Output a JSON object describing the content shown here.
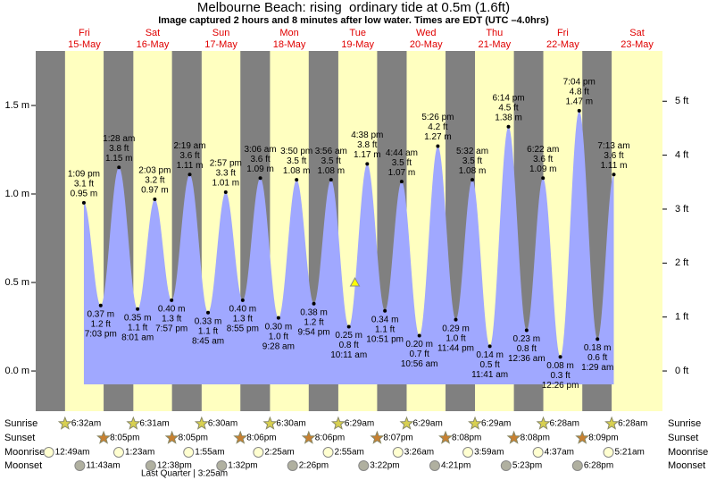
{
  "chart_data": {
    "type": "tide",
    "title": "Melbourne Beach: rising  ordinary tide at 0.5m (1.6ft)",
    "subtitle": "Image captured 2 hours and 8 minutes after low water. Times are EDT (UTC –4.0hrs)",
    "ylim": [
      -0.227,
      1.808
    ],
    "yticks": [
      {
        "value": 0,
        "label": "0.0 m"
      },
      {
        "value": 0.5,
        "label": "0.5 m"
      },
      {
        "value": 1,
        "label": "1.0 m"
      },
      {
        "value": 1.5,
        "label": "1.5 m"
      }
    ],
    "y2lim": [
      -0.745,
      5.932
    ],
    "y2ticks": [
      {
        "value": 0,
        "label": "0 ft"
      },
      {
        "value": 1,
        "label": "1 ft"
      },
      {
        "value": 2,
        "label": "2 ft"
      },
      {
        "value": 3,
        "label": "3 ft"
      },
      {
        "value": 4,
        "label": "4 ft"
      },
      {
        "value": 5,
        "label": "5 ft"
      }
    ],
    "marker": {
      "value": 0.5,
      "low_time": "10:11 am",
      "hours_after_low": 2,
      "minutes_after_low": 8
    },
    "row_labels": [
      "Sunrise",
      "Sunset",
      "Moonrise",
      "Moonset"
    ],
    "moon_phase": "Last Quarter | 3:25am",
    "days": [
      {
        "weekday": "Fri",
        "date": "15-May",
        "sunrise": "6:32am",
        "sunset": "8:05pm",
        "moonrise": "12:49am",
        "moonset": "11:43am",
        "tides": [
          {
            "time": "1:09 pm",
            "m": 0.95,
            "m_label": "0.95 m",
            "ft_label": "3.1 ft"
          },
          {
            "time": "7:03 pm",
            "m": 0.37,
            "m_label": "0.37 m",
            "ft_label": "1.2 ft"
          }
        ]
      },
      {
        "weekday": "Sat",
        "date": "16-May",
        "sunrise": "6:31am",
        "sunset": "8:05pm",
        "moonrise": "1:23am",
        "moonset": "12:38pm",
        "tides": [
          {
            "time": "1:28 am",
            "m": 1.15,
            "m_label": "1.15 m",
            "ft_label": "3.8 ft"
          },
          {
            "time": "8:01 am",
            "m": 0.35,
            "m_label": "0.35 m",
            "ft_label": "1.1 ft"
          },
          {
            "time": "2:03 pm",
            "m": 0.97,
            "m_label": "0.97 m",
            "ft_label": "3.2 ft"
          },
          {
            "time": "7:57 pm",
            "m": 0.4,
            "m_label": "0.40 m",
            "ft_label": "1.3 ft"
          }
        ]
      },
      {
        "weekday": "Sun",
        "date": "17-May",
        "sunrise": "6:30am",
        "sunset": "8:06pm",
        "moonrise": "1:55am",
        "moonset": "1:32pm",
        "tides": [
          {
            "time": "2:19 am",
            "m": 1.11,
            "m_label": "1.11 m",
            "ft_label": "3.6 ft"
          },
          {
            "time": "8:45 am",
            "m": 0.33,
            "m_label": "0.33 m",
            "ft_label": "1.1 ft"
          },
          {
            "time": "2:57 pm",
            "m": 1.01,
            "m_label": "1.01 m",
            "ft_label": "3.3 ft"
          },
          {
            "time": "8:55 pm",
            "m": 0.4,
            "m_label": "0.40 m",
            "ft_label": "1.3 ft"
          }
        ]
      },
      {
        "weekday": "Mon",
        "date": "18-May",
        "sunrise": "6:30am",
        "sunset": "8:06pm",
        "moonrise": "2:25am",
        "moonset": "2:26pm",
        "tides": [
          {
            "time": "3:06 am",
            "m": 1.09,
            "m_label": "1.09 m",
            "ft_label": "3.6 ft"
          },
          {
            "time": "9:28 am",
            "m": 0.3,
            "m_label": "0.30 m",
            "ft_label": "1.0 ft"
          },
          {
            "time": "3:50 pm",
            "m": 1.08,
            "m_label": "1.08 m",
            "ft_label": "3.5 ft"
          },
          {
            "time": "9:54 pm",
            "m": 0.38,
            "m_label": "0.38 m",
            "ft_label": "1.2 ft"
          }
        ]
      },
      {
        "weekday": "Tue",
        "date": "19-May",
        "sunrise": "6:29am",
        "sunset": "8:07pm",
        "moonrise": "2:55am",
        "moonset": "3:22pm",
        "tides": [
          {
            "time": "3:56 am",
            "m": 1.08,
            "m_label": "1.08 m",
            "ft_label": "3.5 ft"
          },
          {
            "time": "10:11 am",
            "m": 0.25,
            "m_label": "0.25 m",
            "ft_label": "0.8 ft"
          },
          {
            "time": "4:38 pm",
            "m": 1.17,
            "m_label": "1.17 m",
            "ft_label": "3.8 ft"
          },
          {
            "time": "10:51 pm",
            "m": 0.34,
            "m_label": "0.34 m",
            "ft_label": "1.1 ft"
          }
        ]
      },
      {
        "weekday": "Wed",
        "date": "20-May",
        "sunrise": "6:29am",
        "sunset": "8:08pm",
        "moonrise": "3:26am",
        "moonset": "4:21pm",
        "tides": [
          {
            "time": "4:44 am",
            "m": 1.07,
            "m_label": "1.07 m",
            "ft_label": "3.5 ft"
          },
          {
            "time": "10:56 am",
            "m": 0.2,
            "m_label": "0.20 m",
            "ft_label": "0.7 ft"
          },
          {
            "time": "5:26 pm",
            "m": 1.27,
            "m_label": "1.27 m",
            "ft_label": "4.2 ft"
          },
          {
            "time": "11:44 pm",
            "m": 0.29,
            "m_label": "0.29 m",
            "ft_label": "1.0 ft"
          }
        ]
      },
      {
        "weekday": "Thu",
        "date": "21-May",
        "sunrise": "6:29am",
        "sunset": "8:08pm",
        "moonrise": "3:59am",
        "moonset": "5:23pm",
        "tides": [
          {
            "time": "5:32 am",
            "m": 1.08,
            "m_label": "1.08 m",
            "ft_label": "3.5 ft"
          },
          {
            "time": "11:41 am",
            "m": 0.14,
            "m_label": "0.14 m",
            "ft_label": "0.5 ft"
          },
          {
            "time": "6:14 pm",
            "m": 1.38,
            "m_label": "1.38 m",
            "ft_label": "4.5 ft"
          }
        ]
      },
      {
        "weekday": "Fri",
        "date": "22-May",
        "sunrise": "6:28am",
        "sunset": "8:09pm",
        "moonrise": "4:37am",
        "moonset": "6:28pm",
        "tides": [
          {
            "time": "12:36 am",
            "m": 0.23,
            "m_label": "0.23 m",
            "ft_label": "0.8 ft"
          },
          {
            "time": "6:22 am",
            "m": 1.09,
            "m_label": "1.09 m",
            "ft_label": "3.6 ft"
          },
          {
            "time": "12:26 pm",
            "m": 0.08,
            "m_label": "0.08 m",
            "ft_label": "0.3 ft"
          },
          {
            "time": "7:04 pm",
            "m": 1.47,
            "m_label": "1.47 m",
            "ft_label": "4.8 ft"
          }
        ]
      },
      {
        "weekday": "Sat",
        "date": "23-May",
        "sunrise": "6:28am",
        "moonrise": "5:21am",
        "tides": [
          {
            "time": "1:29 am",
            "m": 0.18,
            "m_label": "0.18 m",
            "ft_label": "0.6 ft"
          },
          {
            "time": "7:13 am",
            "m": 1.11,
            "m_label": "1.11 m",
            "ft_label": "3.6 ft"
          }
        ]
      }
    ]
  }
}
